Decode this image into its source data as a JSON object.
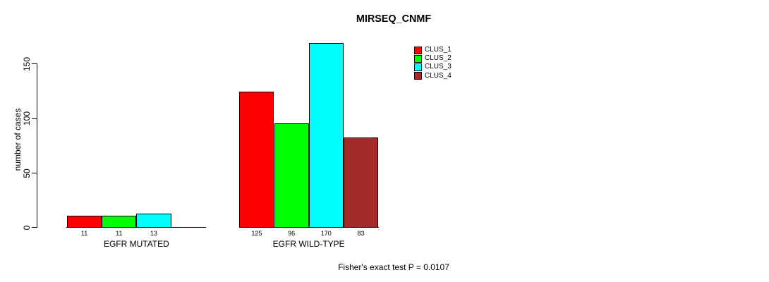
{
  "chart_data": {
    "type": "bar",
    "title": "MIRSEQ_CNMF",
    "ylabel": "number of cases",
    "xlabel": "",
    "yticks": [
      0,
      50,
      100,
      150
    ],
    "ylim": [
      0,
      170
    ],
    "grid": false,
    "legend_position": "inside-top-right",
    "categories": [
      "EGFR MUTATED",
      "EGFR WILD-TYPE"
    ],
    "series": [
      {
        "name": "CLUS_1",
        "color": "#ff0000",
        "values": [
          11,
          125
        ]
      },
      {
        "name": "CLUS_2",
        "color": "#00ff00",
        "values": [
          11,
          96
        ]
      },
      {
        "name": "CLUS_3",
        "color": "#00ffff",
        "values": [
          13,
          170
        ]
      },
      {
        "name": "CLUS_4",
        "color": "#a52a2a",
        "values": [
          0,
          83
        ]
      }
    ],
    "bar_value_labels": {
      "EGFR MUTATED": [
        "11",
        "11",
        "13"
      ],
      "EGFR WILD-TYPE": [
        "125",
        "96",
        "170",
        "83"
      ]
    },
    "annotation": "Fisher's exact test P = 0.0107",
    "axis_color": "#000000",
    "background_color": "#ffffff"
  }
}
